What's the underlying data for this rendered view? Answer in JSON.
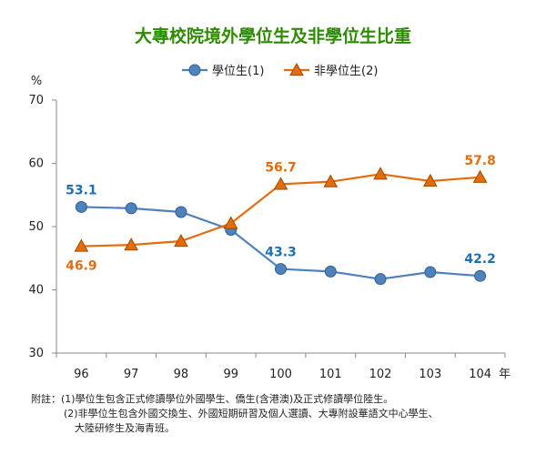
{
  "chart_data": {
    "type": "line",
    "title": "大專校院境外學位生及非學位生比重",
    "ylabel": "%",
    "xlabel": "年",
    "categories": [
      "96",
      "97",
      "98",
      "99",
      "100",
      "101",
      "102",
      "103",
      "104"
    ],
    "ylim": [
      30,
      70
    ],
    "yticks": [
      30,
      40,
      50,
      60,
      70
    ],
    "grid": false,
    "legend_position": "top",
    "series": [
      {
        "name": "學位生(1)",
        "color": "#4f81bd",
        "marker": "circle",
        "values": [
          53.1,
          52.9,
          52.3,
          49.5,
          43.3,
          42.9,
          41.7,
          42.8,
          42.2
        ]
      },
      {
        "name": "非學位生(2)",
        "color": "#e46c0a",
        "marker": "triangle",
        "values": [
          46.9,
          47.1,
          47.7,
          50.5,
          56.7,
          57.1,
          58.3,
          57.2,
          57.8
        ]
      }
    ],
    "data_labels": [
      {
        "series": 0,
        "index": 0,
        "text": "53.1",
        "color": "#1f6fb5",
        "place": "above"
      },
      {
        "series": 0,
        "index": 4,
        "text": "43.3",
        "color": "#1f6fb5",
        "place": "above"
      },
      {
        "series": 0,
        "index": 8,
        "text": "42.2",
        "color": "#1f6fb5",
        "place": "above"
      },
      {
        "series": 1,
        "index": 0,
        "text": "46.9",
        "color": "#e46c0a",
        "place": "below"
      },
      {
        "series": 1,
        "index": 4,
        "text": "56.7",
        "color": "#e46c0a",
        "place": "above"
      },
      {
        "series": 1,
        "index": 8,
        "text": "57.8",
        "color": "#e46c0a",
        "place": "above"
      }
    ]
  },
  "notes": {
    "line1": "附註：(1)學位生包含正式修讀學位外國學生、僑生(含港澳)及正式修讀學位陸生。",
    "line2": "(2)非學位生包含外國交換生、外國短期研習及個人選讀、大專附設華語文中心學生、",
    "line3": "大陸研修生及海青班。"
  }
}
